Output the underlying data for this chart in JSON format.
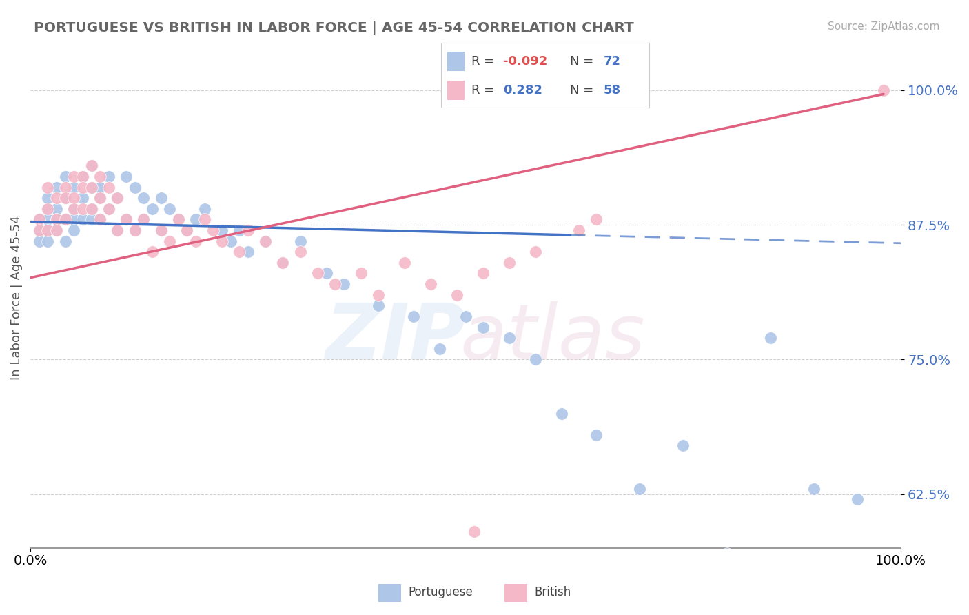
{
  "title": "PORTUGUESE VS BRITISH IN LABOR FORCE | AGE 45-54 CORRELATION CHART",
  "source": "Source: ZipAtlas.com",
  "ylabel": "In Labor Force | Age 45-54",
  "xlim": [
    0.0,
    1.0
  ],
  "ylim": [
    0.575,
    1.04
  ],
  "yticks": [
    0.625,
    0.75,
    0.875,
    1.0
  ],
  "ytick_labels": [
    "62.5%",
    "75.0%",
    "87.5%",
    "100.0%"
  ],
  "xtick_labels": [
    "0.0%",
    "100.0%"
  ],
  "legend_blue_label": "Portuguese",
  "legend_pink_label": "British",
  "R_blue": -0.092,
  "N_blue": 72,
  "R_pink": 0.282,
  "N_pink": 58,
  "blue_color": "#aec6e8",
  "pink_color": "#f4b8c8",
  "blue_line_color": "#4472c4",
  "pink_line_color": "#e06080",
  "blue_line_solid_end": 0.62,
  "pink_line_solid_end": 0.98,
  "blue_scatter_x": [
    0.01,
    0.01,
    0.01,
    0.02,
    0.02,
    0.02,
    0.02,
    0.02,
    0.03,
    0.03,
    0.03,
    0.03,
    0.04,
    0.04,
    0.04,
    0.04,
    0.05,
    0.05,
    0.05,
    0.05,
    0.06,
    0.06,
    0.06,
    0.07,
    0.07,
    0.07,
    0.07,
    0.08,
    0.08,
    0.08,
    0.09,
    0.09,
    0.1,
    0.1,
    0.11,
    0.11,
    0.12,
    0.12,
    0.13,
    0.13,
    0.14,
    0.15,
    0.15,
    0.16,
    0.17,
    0.18,
    0.19,
    0.2,
    0.22,
    0.23,
    0.24,
    0.25,
    0.27,
    0.29,
    0.31,
    0.34,
    0.36,
    0.4,
    0.44,
    0.47,
    0.5,
    0.52,
    0.55,
    0.58,
    0.61,
    0.65,
    0.7,
    0.75,
    0.8,
    0.85,
    0.9,
    0.95
  ],
  "blue_scatter_y": [
    0.88,
    0.87,
    0.86,
    0.9,
    0.89,
    0.88,
    0.87,
    0.86,
    0.91,
    0.89,
    0.88,
    0.87,
    0.92,
    0.9,
    0.88,
    0.86,
    0.91,
    0.89,
    0.88,
    0.87,
    0.92,
    0.9,
    0.88,
    0.93,
    0.91,
    0.89,
    0.88,
    0.91,
    0.9,
    0.88,
    0.92,
    0.89,
    0.9,
    0.87,
    0.92,
    0.88,
    0.91,
    0.87,
    0.9,
    0.88,
    0.89,
    0.9,
    0.87,
    0.89,
    0.88,
    0.87,
    0.88,
    0.89,
    0.87,
    0.86,
    0.87,
    0.85,
    0.86,
    0.84,
    0.86,
    0.83,
    0.82,
    0.8,
    0.79,
    0.76,
    0.79,
    0.78,
    0.77,
    0.75,
    0.7,
    0.68,
    0.63,
    0.67,
    0.57,
    0.77,
    0.63,
    0.62
  ],
  "pink_scatter_x": [
    0.01,
    0.01,
    0.02,
    0.02,
    0.02,
    0.03,
    0.03,
    0.03,
    0.04,
    0.04,
    0.04,
    0.05,
    0.05,
    0.05,
    0.06,
    0.06,
    0.06,
    0.07,
    0.07,
    0.07,
    0.08,
    0.08,
    0.08,
    0.09,
    0.09,
    0.1,
    0.1,
    0.11,
    0.12,
    0.13,
    0.14,
    0.15,
    0.16,
    0.17,
    0.18,
    0.19,
    0.2,
    0.21,
    0.22,
    0.24,
    0.25,
    0.27,
    0.29,
    0.31,
    0.33,
    0.35,
    0.38,
    0.4,
    0.43,
    0.46,
    0.49,
    0.52,
    0.55,
    0.58,
    0.63,
    0.65,
    0.98,
    0.51
  ],
  "pink_scatter_y": [
    0.88,
    0.87,
    0.91,
    0.89,
    0.87,
    0.9,
    0.88,
    0.87,
    0.91,
    0.9,
    0.88,
    0.92,
    0.9,
    0.89,
    0.92,
    0.91,
    0.89,
    0.93,
    0.91,
    0.89,
    0.92,
    0.9,
    0.88,
    0.91,
    0.89,
    0.9,
    0.87,
    0.88,
    0.87,
    0.88,
    0.85,
    0.87,
    0.86,
    0.88,
    0.87,
    0.86,
    0.88,
    0.87,
    0.86,
    0.85,
    0.87,
    0.86,
    0.84,
    0.85,
    0.83,
    0.82,
    0.83,
    0.81,
    0.84,
    0.82,
    0.81,
    0.83,
    0.84,
    0.85,
    0.87,
    0.88,
    1.0,
    0.59
  ],
  "blue_line_x0": 0.0,
  "blue_line_x1": 1.0,
  "blue_line_y0": 0.878,
  "blue_line_y1": 0.858,
  "pink_line_x0": 0.0,
  "pink_line_x1": 1.0,
  "pink_line_y0": 0.826,
  "pink_line_y1": 1.0
}
